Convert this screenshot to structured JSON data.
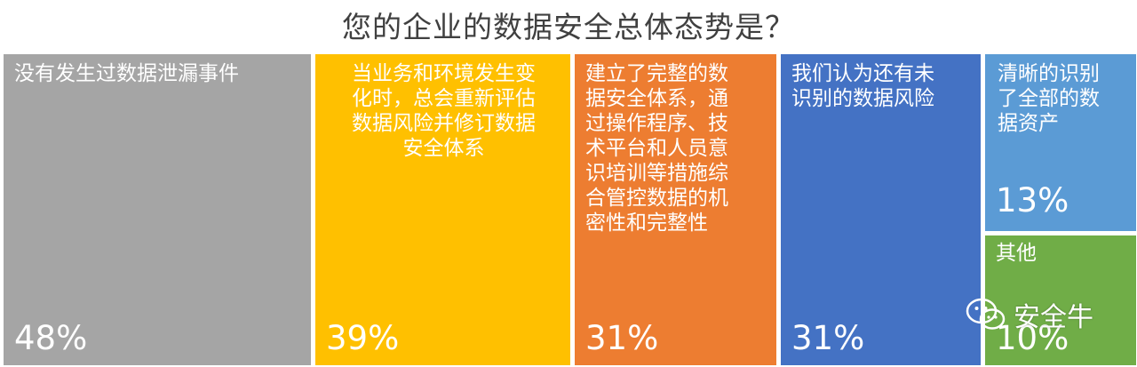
{
  "chart_data": {
    "type": "treemap",
    "title": "您的企业的数据安全总体态势是？",
    "items": [
      {
        "label": "没有发生过数据泄漏事件",
        "value_label": "48%",
        "value": 48,
        "color": "#A5A5A5"
      },
      {
        "label": "当业务和环境发生变\n化时，总会重新评估\n数据风险并修订数据\n安全体系",
        "value_label": "39%",
        "value": 39,
        "color": "#FFC000"
      },
      {
        "label": "建立了完整的数\n据安全体系，通\n过操作程序、技\n术平台和人员意\n识培训等措施综\n合管控数据的机\n密性和完整性",
        "value_label": "31%",
        "value": 31,
        "color": "#ED7D31"
      },
      {
        "label": "我们认为还有未\n识别的数据风险",
        "value_label": "31%",
        "value": 31,
        "color": "#4472C4"
      },
      {
        "label": "清晰的识别\n了全部的数\n据资产",
        "value_label": "13%",
        "value": 13,
        "color": "#5B9BD5"
      },
      {
        "label": "其他",
        "value_label": "10%",
        "value": 10,
        "color": "#70AD47"
      }
    ]
  },
  "watermark": {
    "text": "安全牛",
    "icon": "wechat-icon"
  }
}
